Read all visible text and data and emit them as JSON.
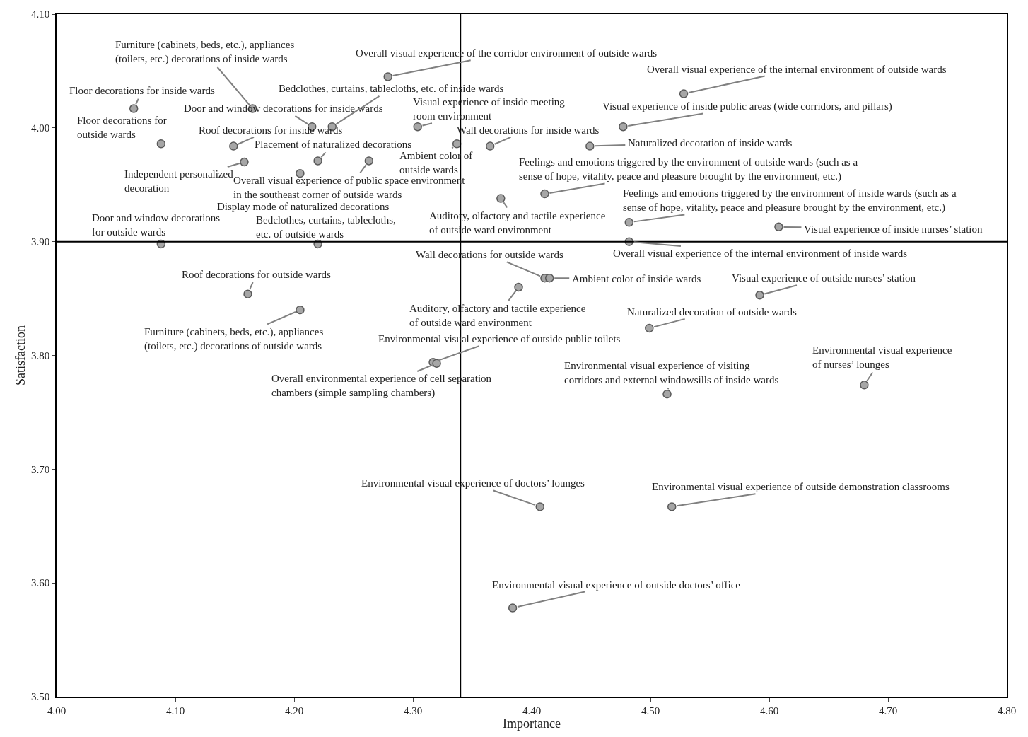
{
  "chart_data": {
    "type": "scatter",
    "xlabel": "Importance",
    "ylabel": "Satisfaction",
    "marker": "circle",
    "color": "#a6a6a6",
    "x": [
      4.065,
      4.088,
      4.165,
      4.215,
      4.232,
      4.149,
      4.22,
      4.158,
      4.263,
      4.205,
      4.088,
      4.22,
      4.161,
      4.205,
      4.279,
      4.304,
      4.337,
      4.365,
      4.374,
      4.528,
      4.477,
      4.449,
      4.411,
      4.482,
      4.608,
      4.482,
      4.411,
      4.415,
      4.389,
      4.592,
      4.499,
      4.317,
      4.32,
      4.514,
      4.68,
      4.407,
      4.518,
      4.384
    ],
    "values": [
      4.017,
      3.986,
      4.017,
      4.001,
      4.001,
      3.984,
      3.971,
      3.97,
      3.971,
      3.96,
      3.898,
      3.898,
      3.854,
      3.84,
      4.045,
      4.001,
      3.986,
      3.984,
      3.938,
      4.03,
      4.001,
      3.984,
      3.942,
      3.917,
      3.913,
      3.9,
      3.868,
      3.868,
      3.86,
      3.853,
      3.824,
      3.794,
      3.793,
      3.766,
      3.774,
      3.667,
      3.667,
      3.578
    ],
    "xlim": [
      4.0,
      4.8
    ],
    "xticks": [
      {
        "value": 4.0,
        "label": "4.00"
      },
      {
        "value": 4.1,
        "label": "4.10"
      },
      {
        "value": 4.2,
        "label": "4.20"
      },
      {
        "value": 4.3,
        "label": "4.30"
      },
      {
        "value": 4.4,
        "label": "4.40"
      },
      {
        "value": 4.5,
        "label": "4.50"
      },
      {
        "value": 4.6,
        "label": "4.60"
      },
      {
        "value": 4.7,
        "label": "4.70"
      },
      {
        "value": 4.8,
        "label": "4.80"
      }
    ],
    "ylim": [
      3.5,
      4.1
    ],
    "yticks": [
      {
        "value": 3.5,
        "label": "3.50"
      },
      {
        "value": 3.6,
        "label": "3.60"
      },
      {
        "value": 3.7,
        "label": "3.70"
      },
      {
        "value": 3.8,
        "label": "3.80"
      },
      {
        "value": 3.9,
        "label": "3.90"
      },
      {
        "value": 4.0,
        "label": "4.00"
      },
      {
        "value": 4.1,
        "label": "4.10"
      }
    ],
    "ref_lines": [
      {
        "axis": "x",
        "value": 4.34,
        "color": "#000000"
      },
      {
        "axis": "y",
        "value": 3.9,
        "color": "#000000"
      }
    ],
    "annotations": [
      {
        "text": "Floor decorations for inside wards",
        "x": 4.065,
        "y": 4.017
      },
      {
        "text": "Floor decorations for outside wards",
        "x": 4.088,
        "y": 3.986
      },
      {
        "text": "Furniture (cabinets, beds, etc.), appliances (toilets, etc.) decorations of inside wards",
        "x": 4.165,
        "y": 4.017
      },
      {
        "text": "Door and window decorations for inside wards",
        "x": 4.215,
        "y": 4.001
      },
      {
        "text": "Bedclothes, curtains, tablecloths, etc. of inside wards",
        "x": 4.232,
        "y": 4.001
      },
      {
        "text": "Roof decorations for inside wards",
        "x": 4.149,
        "y": 3.984
      },
      {
        "text": "Placement of naturalized decorations",
        "x": 4.22,
        "y": 3.971
      },
      {
        "text": "Independent personalized decoration",
        "x": 4.158,
        "y": 3.97
      },
      {
        "text": "Overall visual experience of public space environment in the southeast corner of outside wards",
        "x": 4.263,
        "y": 3.971
      },
      {
        "text": "Display mode of naturalized decorations",
        "x": 4.205,
        "y": 3.96
      },
      {
        "text": "Door and window decorations for outside wards",
        "x": 4.088,
        "y": 3.898
      },
      {
        "text": "Bedclothes, curtains, tablecloths, etc. of outside wards",
        "x": 4.22,
        "y": 3.898
      },
      {
        "text": "Roof decorations for outside wards",
        "x": 4.161,
        "y": 3.854
      },
      {
        "text": "Furniture (cabinets, beds, etc.), appliances (toilets, etc.) decorations of outside wards",
        "x": 4.205,
        "y": 3.84
      },
      {
        "text": "Overall visual experience of the corridor environment of outside wards",
        "x": 4.279,
        "y": 4.045
      },
      {
        "text": "Visual experience of inside meeting room environment",
        "x": 4.304,
        "y": 4.001
      },
      {
        "text": "Ambient color of outside wards",
        "x": 4.337,
        "y": 3.986
      },
      {
        "text": "Wall decorations for inside wards",
        "x": 4.365,
        "y": 3.984
      },
      {
        "text": "Auditory, olfactory and tactile experience of outside ward environment",
        "x": 4.374,
        "y": 3.938
      },
      {
        "text": "Overall visual experience of the internal environment of outside wards",
        "x": 4.528,
        "y": 4.03
      },
      {
        "text": "Visual experience of inside public areas (wide corridors, and pillars)",
        "x": 4.477,
        "y": 4.001
      },
      {
        "text": "Naturalized decoration of inside wards",
        "x": 4.449,
        "y": 3.984
      },
      {
        "text": "Feelings and emotions triggered by the environment of outside wards (such as a sense of hope, vitality, peace and pleasure brought by the environment, etc.)",
        "x": 4.411,
        "y": 3.942
      },
      {
        "text": "Feelings and emotions triggered by the environment of inside wards (such as a sense of hope, vitality, peace and pleasure brought by the environment, etc.)",
        "x": 4.482,
        "y": 3.917
      },
      {
        "text": "Visual experience of inside nurses’ station",
        "x": 4.608,
        "y": 3.913
      },
      {
        "text": "Overall visual experience of the internal environment of inside wards",
        "x": 4.482,
        "y": 3.9
      },
      {
        "text": "Wall decorations for outside wards",
        "x": 4.411,
        "y": 3.868
      },
      {
        "text": "Ambient color of inside wards",
        "x": 4.415,
        "y": 3.868
      },
      {
        "text": "Auditory, olfactory and tactile experience of outside ward environment",
        "x": 4.389,
        "y": 3.86
      },
      {
        "text": "Visual experience of outside nurses’ station",
        "x": 4.592,
        "y": 3.853
      },
      {
        "text": "Naturalized decoration of outside wards",
        "x": 4.499,
        "y": 3.824
      },
      {
        "text": "Environmental visual experience of outside public toilets",
        "x": 4.317,
        "y": 3.794
      },
      {
        "text": "Overall environmental experience of cell separation chambers (simple sampling chambers)",
        "x": 4.32,
        "y": 3.793
      },
      {
        "text": "Environmental visual experience of visiting corridors and external windowsills of inside wards",
        "x": 4.514,
        "y": 3.766
      },
      {
        "text": "Environmental visual experience of nurses’ lounges",
        "x": 4.68,
        "y": 3.774
      },
      {
        "text": "Environmental visual experience of doctors’ lounges",
        "x": 4.407,
        "y": 3.667
      },
      {
        "text": "Environmental visual experience of outside demonstration classrooms",
        "x": 4.518,
        "y": 3.667
      },
      {
        "text": "Environmental visual experience of outside doctors’ office",
        "x": 4.384,
        "y": 3.578
      }
    ]
  }
}
